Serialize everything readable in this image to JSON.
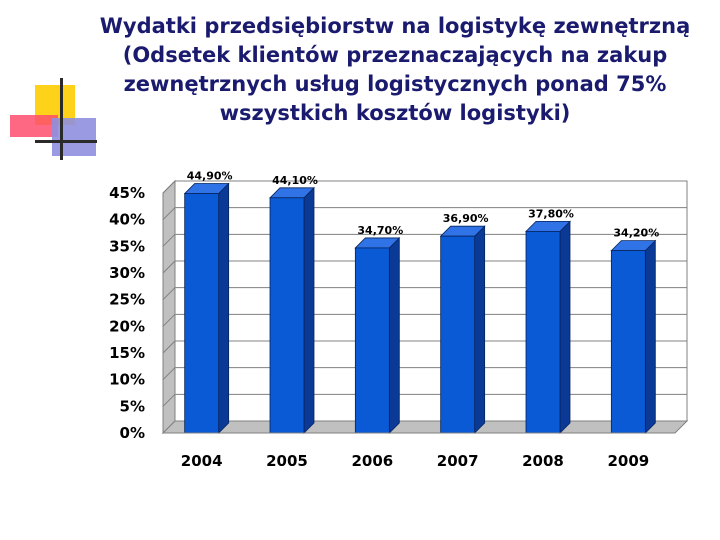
{
  "title_lines": [
    "Wydatki przedsiębiorstw na logistykę zewnętrzną",
    "(Odsetek klientów przeznaczających na zakup",
    "zewnętrznych usług logistycznych ponad 75%",
    "wszystkich kosztów logistyki)"
  ],
  "chart_data": {
    "type": "bar",
    "title": "Wydatki przedsiębiorstw na logistykę zewnętrzną (Odsetek klientów przeznaczających na zakup zewnętrznych usług logistycznych ponad 75% wszystkich kosztów logistyki)",
    "categories": [
      "2004",
      "2005",
      "2006",
      "2007",
      "2008",
      "2009"
    ],
    "values": [
      44.9,
      44.1,
      34.7,
      36.9,
      37.8,
      34.2
    ],
    "data_labels": [
      "44,90%",
      "44,10%",
      "34,70%",
      "36,90%",
      "37,80%",
      "34,20%"
    ],
    "y_ticks": [
      "0%",
      "5%",
      "10%",
      "15%",
      "20%",
      "25%",
      "30%",
      "35%",
      "40%",
      "45%"
    ],
    "ylim": [
      0,
      45
    ],
    "xlabel": "",
    "ylabel": "",
    "grid": true,
    "legend": "none",
    "style": "3d",
    "colors": {
      "bar_front": "#0a5ad6",
      "bar_side": "#0a3a96",
      "bar_top": "#2f73e6",
      "title": "#1a1a6e"
    }
  }
}
